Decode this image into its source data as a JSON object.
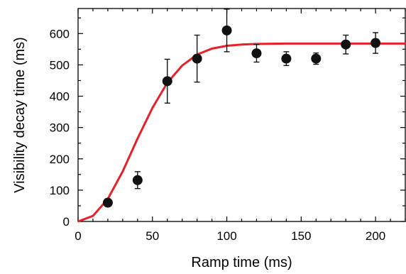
{
  "chart_data": {
    "type": "scatter",
    "title": "",
    "xlabel": "Ramp time (ms)",
    "ylabel": "Visibility decay time (ms)",
    "xlim": [
      0,
      220
    ],
    "ylim": [
      0,
      680
    ],
    "grid": false,
    "legend": "none",
    "x_ticks": [
      0,
      50,
      100,
      150,
      200
    ],
    "y_ticks": [
      0,
      100,
      200,
      300,
      400,
      500,
      600
    ],
    "colors": {
      "points": "#111111",
      "fit_line": "#e8202a",
      "axes": "#000000"
    },
    "series": [
      {
        "kind": "points-with-error-bars",
        "points": [
          {
            "x": 20,
            "y": 60,
            "err": 0
          },
          {
            "x": 40,
            "y": 132,
            "err": 27
          },
          {
            "x": 60,
            "y": 448,
            "err": 70
          },
          {
            "x": 80,
            "y": 520,
            "err": 75
          },
          {
            "x": 100,
            "y": 610,
            "err": 68
          },
          {
            "x": 120,
            "y": 537,
            "err": 28
          },
          {
            "x": 140,
            "y": 520,
            "err": 22
          },
          {
            "x": 160,
            "y": 520,
            "err": 18
          },
          {
            "x": 180,
            "y": 565,
            "err": 30
          },
          {
            "x": 200,
            "y": 570,
            "err": 33
          }
        ]
      },
      {
        "kind": "fit-curve",
        "points": [
          [
            0,
            0
          ],
          [
            10,
            18
          ],
          [
            20,
            72
          ],
          [
            30,
            160
          ],
          [
            40,
            265
          ],
          [
            50,
            363
          ],
          [
            60,
            443
          ],
          [
            70,
            498
          ],
          [
            80,
            533
          ],
          [
            90,
            552
          ],
          [
            100,
            561
          ],
          [
            110,
            565
          ],
          [
            120,
            567
          ],
          [
            140,
            568
          ],
          [
            160,
            568
          ],
          [
            180,
            568
          ],
          [
            200,
            568
          ],
          [
            220,
            568
          ]
        ]
      }
    ]
  }
}
